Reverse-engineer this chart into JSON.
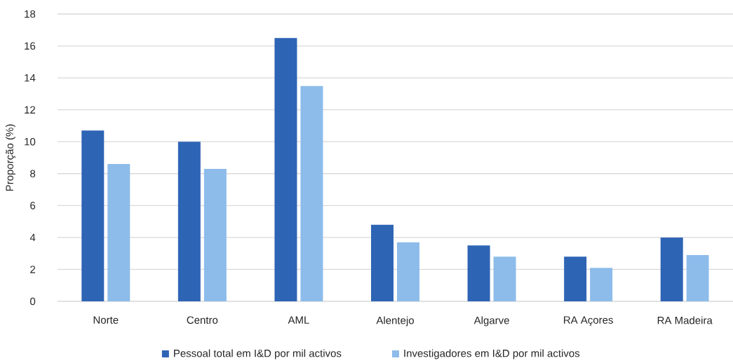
{
  "chart_data": {
    "type": "bar",
    "ylabel": "Proporção (%)",
    "categories": [
      "Norte",
      "Centro",
      "AML",
      "Alentejo",
      "Algarve",
      "RA Açores",
      "RA Madeira"
    ],
    "series": [
      {
        "name": "Pessoal total em I&D por mil activos",
        "color": "#2e64b4",
        "values": [
          10.7,
          10.0,
          16.5,
          4.8,
          3.5,
          2.8,
          4.0
        ]
      },
      {
        "name": "Investigadores em I&D por mil activos",
        "color": "#8dbcea",
        "values": [
          8.6,
          8.3,
          13.5,
          3.7,
          2.8,
          2.1,
          2.9
        ]
      }
    ],
    "ylim": [
      0,
      18
    ],
    "yticks": [
      0,
      2,
      4,
      6,
      8,
      10,
      12,
      14,
      16,
      18
    ],
    "grid": "y",
    "legend": "bottom"
  }
}
